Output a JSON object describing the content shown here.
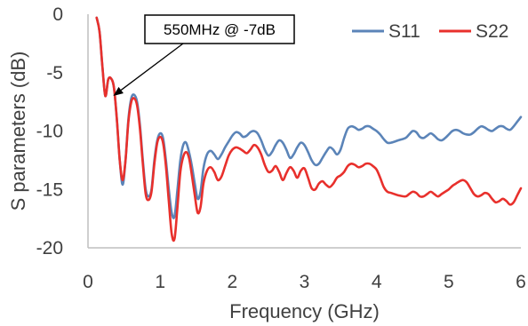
{
  "chart_data": {
    "type": "line",
    "xlabel": "Frequency (GHz)",
    "ylabel": "S parameters (dB)",
    "xlim": [
      0,
      6
    ],
    "ylim": [
      -20,
      0
    ],
    "xticks": [
      0,
      1,
      2,
      3,
      4,
      5,
      6
    ],
    "yticks": [
      0,
      -5,
      -10,
      -15,
      -20
    ],
    "grid": "none",
    "legend_position": "top-right",
    "annotation": {
      "text": "550MHz @ -7dB",
      "x": 0.35,
      "y": -7
    },
    "series": [
      {
        "name": "S11",
        "color": "#5b84b8",
        "points": [
          [
            0.12,
            -0.3
          ],
          [
            0.16,
            -1.5
          ],
          [
            0.2,
            -4.5
          ],
          [
            0.24,
            -7.0
          ],
          [
            0.28,
            -5.6
          ],
          [
            0.32,
            -5.5
          ],
          [
            0.36,
            -6.3
          ],
          [
            0.4,
            -9.0
          ],
          [
            0.44,
            -12.5
          ],
          [
            0.48,
            -14.6
          ],
          [
            0.52,
            -12.5
          ],
          [
            0.56,
            -9.0
          ],
          [
            0.6,
            -7.2
          ],
          [
            0.64,
            -6.9
          ],
          [
            0.68,
            -7.5
          ],
          [
            0.72,
            -9.5
          ],
          [
            0.76,
            -12.5
          ],
          [
            0.8,
            -15.0
          ],
          [
            0.84,
            -15.6
          ],
          [
            0.88,
            -15.0
          ],
          [
            0.92,
            -12.5
          ],
          [
            0.96,
            -10.8
          ],
          [
            1.0,
            -10.2
          ],
          [
            1.04,
            -10.6
          ],
          [
            1.08,
            -12.5
          ],
          [
            1.12,
            -15.0
          ],
          [
            1.16,
            -17.0
          ],
          [
            1.2,
            -17.3
          ],
          [
            1.24,
            -15.0
          ],
          [
            1.28,
            -12.5
          ],
          [
            1.32,
            -11.2
          ],
          [
            1.36,
            -11.0
          ],
          [
            1.4,
            -11.8
          ],
          [
            1.44,
            -13.0
          ],
          [
            1.48,
            -14.5
          ],
          [
            1.52,
            -15.8
          ],
          [
            1.56,
            -15.2
          ],
          [
            1.6,
            -13.2
          ],
          [
            1.65,
            -12.0
          ],
          [
            1.7,
            -11.7
          ],
          [
            1.75,
            -12.0
          ],
          [
            1.8,
            -12.4
          ],
          [
            1.85,
            -12.0
          ],
          [
            1.9,
            -11.4
          ],
          [
            1.95,
            -10.9
          ],
          [
            2.0,
            -10.4
          ],
          [
            2.05,
            -10.1
          ],
          [
            2.1,
            -10.2
          ],
          [
            2.15,
            -10.5
          ],
          [
            2.2,
            -10.4
          ],
          [
            2.25,
            -10.1
          ],
          [
            2.3,
            -10.0
          ],
          [
            2.35,
            -10.2
          ],
          [
            2.4,
            -10.8
          ],
          [
            2.45,
            -11.6
          ],
          [
            2.5,
            -12.1
          ],
          [
            2.55,
            -11.8
          ],
          [
            2.6,
            -11.2
          ],
          [
            2.65,
            -10.8
          ],
          [
            2.7,
            -11.0
          ],
          [
            2.75,
            -11.6
          ],
          [
            2.8,
            -12.3
          ],
          [
            2.85,
            -12.0
          ],
          [
            2.9,
            -11.4
          ],
          [
            2.95,
            -11.0
          ],
          [
            3.0,
            -11.2
          ],
          [
            3.05,
            -11.8
          ],
          [
            3.1,
            -12.5
          ],
          [
            3.15,
            -12.9
          ],
          [
            3.2,
            -12.8
          ],
          [
            3.25,
            -12.3
          ],
          [
            3.3,
            -11.8
          ],
          [
            3.35,
            -11.4
          ],
          [
            3.4,
            -11.6
          ],
          [
            3.45,
            -12.0
          ],
          [
            3.5,
            -11.6
          ],
          [
            3.55,
            -10.6
          ],
          [
            3.6,
            -9.8
          ],
          [
            3.65,
            -9.6
          ],
          [
            3.7,
            -9.7
          ],
          [
            3.75,
            -9.9
          ],
          [
            3.8,
            -9.8
          ],
          [
            3.85,
            -9.6
          ],
          [
            3.9,
            -9.6
          ],
          [
            3.95,
            -9.8
          ],
          [
            4.0,
            -10.0
          ],
          [
            4.05,
            -10.3
          ],
          [
            4.1,
            -10.7
          ],
          [
            4.15,
            -11.0
          ],
          [
            4.2,
            -11.0
          ],
          [
            4.3,
            -10.8
          ],
          [
            4.4,
            -10.6
          ],
          [
            4.45,
            -10.3
          ],
          [
            4.5,
            -10.0
          ],
          [
            4.55,
            -10.1
          ],
          [
            4.6,
            -10.5
          ],
          [
            4.65,
            -10.6
          ],
          [
            4.7,
            -10.4
          ],
          [
            4.75,
            -10.2
          ],
          [
            4.8,
            -10.4
          ],
          [
            4.85,
            -10.7
          ],
          [
            4.9,
            -10.8
          ],
          [
            4.95,
            -10.6
          ],
          [
            5.0,
            -10.3
          ],
          [
            5.05,
            -10.0
          ],
          [
            5.1,
            -9.9
          ],
          [
            5.15,
            -10.0
          ],
          [
            5.2,
            -10.2
          ],
          [
            5.25,
            -10.3
          ],
          [
            5.3,
            -10.3
          ],
          [
            5.35,
            -10.1
          ],
          [
            5.4,
            -9.8
          ],
          [
            5.45,
            -9.6
          ],
          [
            5.5,
            -9.7
          ],
          [
            5.55,
            -9.9
          ],
          [
            5.6,
            -10.0
          ],
          [
            5.65,
            -9.8
          ],
          [
            5.7,
            -9.6
          ],
          [
            5.75,
            -9.6
          ],
          [
            5.8,
            -9.8
          ],
          [
            5.85,
            -9.9
          ],
          [
            5.9,
            -9.6
          ],
          [
            5.95,
            -9.2
          ],
          [
            6.0,
            -8.8
          ]
        ]
      },
      {
        "name": "S22",
        "color": "#e8302c",
        "points": [
          [
            0.12,
            -0.3
          ],
          [
            0.16,
            -1.5
          ],
          [
            0.2,
            -4.5
          ],
          [
            0.24,
            -7.0
          ],
          [
            0.28,
            -5.6
          ],
          [
            0.32,
            -5.5
          ],
          [
            0.36,
            -6.3
          ],
          [
            0.4,
            -9.0
          ],
          [
            0.44,
            -12.5
          ],
          [
            0.48,
            -14.2
          ],
          [
            0.52,
            -12.5
          ],
          [
            0.56,
            -9.2
          ],
          [
            0.6,
            -7.5
          ],
          [
            0.64,
            -7.2
          ],
          [
            0.68,
            -7.8
          ],
          [
            0.72,
            -9.8
          ],
          [
            0.76,
            -12.8
          ],
          [
            0.8,
            -15.4
          ],
          [
            0.84,
            -15.9
          ],
          [
            0.88,
            -15.2
          ],
          [
            0.92,
            -12.8
          ],
          [
            0.96,
            -11.0
          ],
          [
            1.0,
            -10.5
          ],
          [
            1.04,
            -11.0
          ],
          [
            1.08,
            -13.0
          ],
          [
            1.12,
            -16.0
          ],
          [
            1.16,
            -18.8
          ],
          [
            1.2,
            -19.2
          ],
          [
            1.24,
            -16.5
          ],
          [
            1.28,
            -13.5
          ],
          [
            1.32,
            -12.2
          ],
          [
            1.36,
            -11.8
          ],
          [
            1.4,
            -12.3
          ],
          [
            1.44,
            -13.8
          ],
          [
            1.48,
            -15.5
          ],
          [
            1.52,
            -17.0
          ],
          [
            1.56,
            -16.5
          ],
          [
            1.6,
            -14.5
          ],
          [
            1.65,
            -13.4
          ],
          [
            1.7,
            -13.1
          ],
          [
            1.75,
            -13.5
          ],
          [
            1.8,
            -14.2
          ],
          [
            1.85,
            -13.9
          ],
          [
            1.9,
            -13.0
          ],
          [
            1.95,
            -12.1
          ],
          [
            2.0,
            -11.6
          ],
          [
            2.05,
            -11.4
          ],
          [
            2.1,
            -11.5
          ],
          [
            2.15,
            -11.7
          ],
          [
            2.2,
            -11.9
          ],
          [
            2.25,
            -11.6
          ],
          [
            2.3,
            -11.2
          ],
          [
            2.35,
            -11.4
          ],
          [
            2.4,
            -12.0
          ],
          [
            2.45,
            -12.9
          ],
          [
            2.5,
            -13.5
          ],
          [
            2.55,
            -13.4
          ],
          [
            2.6,
            -13.0
          ],
          [
            2.65,
            -13.5
          ],
          [
            2.7,
            -14.2
          ],
          [
            2.75,
            -13.6
          ],
          [
            2.8,
            -13.1
          ],
          [
            2.85,
            -13.4
          ],
          [
            2.9,
            -14.0
          ],
          [
            2.95,
            -13.4
          ],
          [
            3.0,
            -13.2
          ],
          [
            3.05,
            -14.0
          ],
          [
            3.1,
            -14.9
          ],
          [
            3.15,
            -15.0
          ],
          [
            3.2,
            -14.5
          ],
          [
            3.25,
            -14.3
          ],
          [
            3.3,
            -14.6
          ],
          [
            3.35,
            -14.8
          ],
          [
            3.4,
            -14.5
          ],
          [
            3.45,
            -14.0
          ],
          [
            3.5,
            -13.8
          ],
          [
            3.55,
            -13.5
          ],
          [
            3.6,
            -13.0
          ],
          [
            3.65,
            -12.8
          ],
          [
            3.7,
            -12.9
          ],
          [
            3.75,
            -13.1
          ],
          [
            3.8,
            -13.0
          ],
          [
            3.85,
            -12.8
          ],
          [
            3.9,
            -12.8
          ],
          [
            3.95,
            -13.0
          ],
          [
            4.0,
            -13.3
          ],
          [
            4.05,
            -14.0
          ],
          [
            4.1,
            -14.8
          ],
          [
            4.15,
            -15.2
          ],
          [
            4.2,
            -15.3
          ],
          [
            4.3,
            -15.5
          ],
          [
            4.4,
            -15.6
          ],
          [
            4.45,
            -15.4
          ],
          [
            4.5,
            -15.2
          ],
          [
            4.55,
            -15.3
          ],
          [
            4.6,
            -15.6
          ],
          [
            4.65,
            -15.6
          ],
          [
            4.7,
            -15.4
          ],
          [
            4.75,
            -15.2
          ],
          [
            4.8,
            -15.4
          ],
          [
            4.85,
            -15.6
          ],
          [
            4.9,
            -15.4
          ],
          [
            4.95,
            -15.2
          ],
          [
            5.0,
            -15.0
          ],
          [
            5.05,
            -14.7
          ],
          [
            5.1,
            -14.5
          ],
          [
            5.15,
            -14.3
          ],
          [
            5.2,
            -14.2
          ],
          [
            5.25,
            -14.4
          ],
          [
            5.3,
            -14.9
          ],
          [
            5.35,
            -15.4
          ],
          [
            5.4,
            -15.6
          ],
          [
            5.45,
            -15.5
          ],
          [
            5.5,
            -15.3
          ],
          [
            5.55,
            -15.4
          ],
          [
            5.6,
            -15.8
          ],
          [
            5.65,
            -16.1
          ],
          [
            5.7,
            -16.0
          ],
          [
            5.75,
            -15.8
          ],
          [
            5.8,
            -16.0
          ],
          [
            5.85,
            -16.3
          ],
          [
            5.9,
            -16.1
          ],
          [
            5.95,
            -15.5
          ],
          [
            6.0,
            -14.9
          ]
        ]
      }
    ]
  }
}
